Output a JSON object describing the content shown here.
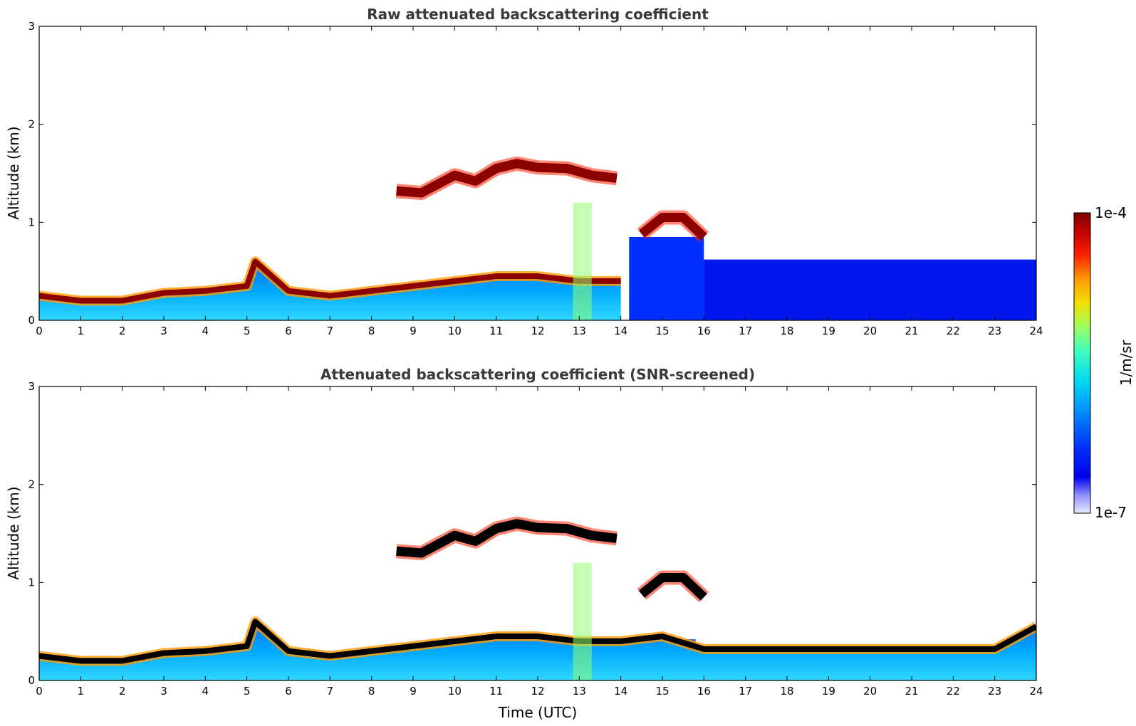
{
  "colors": {
    "dark_red": "#8b0000",
    "red": "#ff2000",
    "orange": "#ff9a00",
    "yellow": "#f0e000",
    "green": "#7fff7f",
    "cyan": "#00d8f0",
    "blue": "#0040ff",
    "navy": "#0000d0",
    "pale": "#dcdcff",
    "title": "#3a3a3a",
    "cloud_top_screened": "#000000"
  },
  "colorbar": {
    "max_label": "1e-4",
    "min_label": "1e-7",
    "unit_label": "1/m/sr",
    "scale": "log"
  },
  "chart_data": [
    {
      "type": "heatmap",
      "title": "Raw attenuated backscattering coefficient",
      "xlabel": "",
      "ylabel": "Altitude (km)",
      "xlim": [
        0,
        24
      ],
      "ylim": [
        0,
        3
      ],
      "x_ticks": [
        "0",
        "1",
        "2",
        "3",
        "4",
        "5",
        "6",
        "7",
        "8",
        "9",
        "10",
        "11",
        "12",
        "13",
        "14",
        "15",
        "16",
        "17",
        "18",
        "19",
        "20",
        "21",
        "22",
        "23",
        "24"
      ],
      "y_ticks": [
        "0",
        "1",
        "2",
        "3"
      ],
      "boundary_layer_top_km": [
        [
          0,
          0.25
        ],
        [
          1,
          0.2
        ],
        [
          2,
          0.2
        ],
        [
          3,
          0.28
        ],
        [
          4,
          0.3
        ],
        [
          5,
          0.35
        ],
        [
          5.2,
          0.6
        ],
        [
          6,
          0.3
        ],
        [
          7,
          0.25
        ],
        [
          8,
          0.3
        ],
        [
          9,
          0.35
        ],
        [
          10,
          0.4
        ],
        [
          11,
          0.45
        ],
        [
          12,
          0.45
        ],
        [
          13,
          0.4
        ],
        [
          14,
          0.4
        ]
      ],
      "cloud_layer_km": [
        [
          8.6,
          1.32
        ],
        [
          9.2,
          1.3
        ],
        [
          10,
          1.48
        ],
        [
          10.5,
          1.42
        ],
        [
          11,
          1.55
        ],
        [
          11.5,
          1.6
        ],
        [
          12,
          1.56
        ],
        [
          12.7,
          1.55
        ],
        [
          13.3,
          1.48
        ],
        [
          13.9,
          1.45
        ],
        [
          14.5,
          0.88
        ],
        [
          15,
          1.05
        ],
        [
          15.5,
          1.05
        ],
        [
          16,
          0.85
        ]
      ]
    },
    {
      "type": "heatmap",
      "title": "Attenuated backscattering coefficient (SNR-screened)",
      "xlabel": "Time (UTC)",
      "ylabel": "Altitude (km)",
      "xlim": [
        0,
        24
      ],
      "ylim": [
        0,
        3
      ],
      "x_ticks": [
        "0",
        "1",
        "2",
        "3",
        "4",
        "5",
        "6",
        "7",
        "8",
        "9",
        "10",
        "11",
        "12",
        "13",
        "14",
        "15",
        "16",
        "17",
        "18",
        "19",
        "20",
        "21",
        "22",
        "23",
        "24"
      ],
      "y_ticks": [
        "0",
        "1",
        "2",
        "3"
      ],
      "boundary_layer_top_km": [
        [
          0,
          0.25
        ],
        [
          1,
          0.2
        ],
        [
          2,
          0.2
        ],
        [
          3,
          0.28
        ],
        [
          4,
          0.3
        ],
        [
          5,
          0.35
        ],
        [
          5.2,
          0.6
        ],
        [
          6,
          0.3
        ],
        [
          7,
          0.25
        ],
        [
          8,
          0.3
        ],
        [
          9,
          0.35
        ],
        [
          10,
          0.4
        ],
        [
          11,
          0.45
        ],
        [
          12,
          0.45
        ],
        [
          13,
          0.4
        ],
        [
          14,
          0.4
        ],
        [
          15,
          0.45
        ],
        [
          16,
          0.32
        ],
        [
          23,
          0.32
        ],
        [
          24,
          0.55
        ]
      ],
      "cloud_layer_km": [
        [
          8.6,
          1.32
        ],
        [
          9.2,
          1.3
        ],
        [
          10,
          1.48
        ],
        [
          10.5,
          1.42
        ],
        [
          11,
          1.55
        ],
        [
          11.5,
          1.6
        ],
        [
          12,
          1.56
        ],
        [
          12.7,
          1.55
        ],
        [
          13.3,
          1.48
        ],
        [
          13.9,
          1.45
        ],
        [
          14.5,
          0.88
        ],
        [
          15,
          1.05
        ],
        [
          15.5,
          1.05
        ],
        [
          16,
          0.85
        ]
      ]
    }
  ]
}
